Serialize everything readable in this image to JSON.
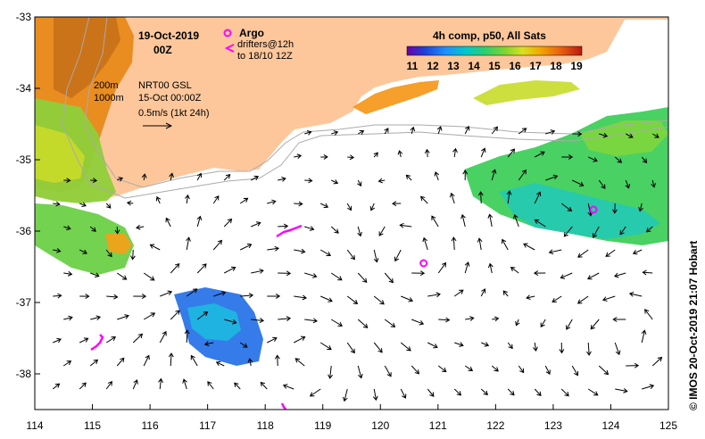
{
  "header": {
    "date": "19-Oct-2019",
    "time": "00Z",
    "product": "4h comp, p50, All Sats"
  },
  "legend": {
    "argo_label": "Argo",
    "drifters_label": "drifters@12h",
    "drifters_sub": "to 18/10 12Z",
    "isobath_200": "200m",
    "isobath_1000": "1000m",
    "nrt_source": "NRT00 GSL",
    "nrt_date": "15-Oct 00:00Z",
    "scale_label": "0.5m/s (1kt 24h)",
    "colorbar_ticks": [
      "11",
      "12",
      "13",
      "14",
      "15",
      "16",
      "17",
      "18",
      "19"
    ],
    "colorbar_colors": [
      "#6a00a8",
      "#1f3fd8",
      "#1e90ff",
      "#00c8c8",
      "#2fcf6a",
      "#7fd431",
      "#d8e021",
      "#f2a900",
      "#e86010",
      "#b81810"
    ]
  },
  "axes": {
    "x_ticks": [
      "114",
      "115",
      "116",
      "117",
      "118",
      "119",
      "120",
      "121",
      "122",
      "123",
      "124",
      "125"
    ],
    "y_ticks": [
      "-33",
      "-34",
      "-35",
      "-36",
      "-37",
      "-38"
    ],
    "xlim": [
      114,
      125
    ],
    "ylim": [
      -38.5,
      -33
    ]
  },
  "credit": "© IMOS 20-Oct-2019 21:07 Hobart",
  "colors": {
    "land": "#fdc79b",
    "ocean": "#ffffff",
    "argo": "#ff00ff",
    "isobath": "#aaaaaa"
  },
  "argo_floats": [
    {
      "lon": 120.75,
      "lat": -36.45
    },
    {
      "lon": 123.7,
      "lat": -35.7
    }
  ]
}
